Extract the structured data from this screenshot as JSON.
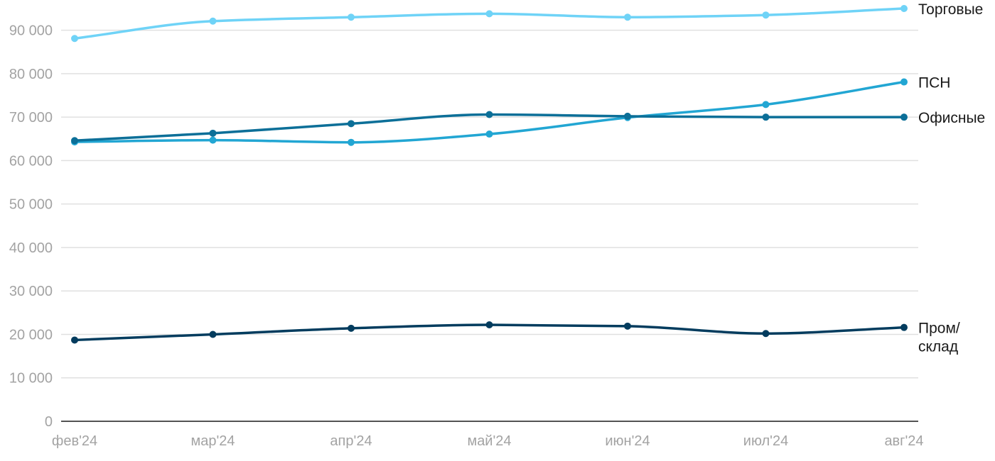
{
  "chart_data": {
    "type": "line",
    "title": "",
    "xlabel": "",
    "ylabel": "",
    "categories": [
      "фев'24",
      "мар'24",
      "апр'24",
      "май'24",
      "июн'24",
      "июл'24",
      "авг'24"
    ],
    "ylim": [
      0,
      95000
    ],
    "yticks": [
      {
        "value": 0,
        "label": "0"
      },
      {
        "value": 10000,
        "label": "10 000"
      },
      {
        "value": 20000,
        "label": "20 000"
      },
      {
        "value": 30000,
        "label": "30 000"
      },
      {
        "value": 40000,
        "label": "40 000"
      },
      {
        "value": 50000,
        "label": "50 000"
      },
      {
        "value": 60000,
        "label": "60 000"
      },
      {
        "value": 70000,
        "label": "70 000"
      },
      {
        "value": 80000,
        "label": "80 000"
      },
      {
        "value": 90000,
        "label": "90 000"
      }
    ],
    "grid": true,
    "legend": "direct labels at right end of each line",
    "series": [
      {
        "name": "Торговые",
        "label_lines": [
          "Торговые"
        ],
        "color": "#6fd3f7",
        "values": [
          88100,
          92100,
          93000,
          93800,
          93000,
          93500,
          95000
        ]
      },
      {
        "name": "ПСН",
        "label_lines": [
          "ПСН"
        ],
        "color": "#22a6d3",
        "values": [
          64300,
          64700,
          64200,
          66100,
          69900,
          72900,
          78100
        ]
      },
      {
        "name": "Офисные",
        "label_lines": [
          "Офисные"
        ],
        "color": "#0c6f98",
        "values": [
          64600,
          66300,
          68500,
          70600,
          70200,
          70000,
          70000
        ]
      },
      {
        "name": "Пром/склад",
        "label_lines": [
          "Пром/",
          "склад"
        ],
        "color": "#033c5e",
        "values": [
          18700,
          20000,
          21400,
          22200,
          21900,
          20200,
          21600
        ]
      }
    ]
  }
}
